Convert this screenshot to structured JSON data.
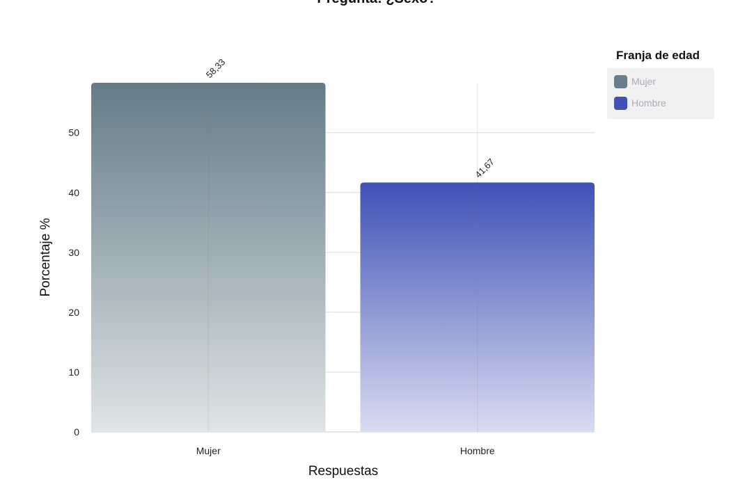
{
  "chart_data": {
    "type": "bar",
    "title": "Pregunta: ¿Sexo?",
    "xlabel": "Respuestas",
    "ylabel": "Porcentaje %",
    "categories": [
      "Mujer",
      "Hombre"
    ],
    "values": [
      58.33,
      41.67
    ],
    "value_labels": [
      "58,33",
      "41,67"
    ],
    "ylim": [
      0,
      58.33
    ],
    "yticks": [
      0,
      10,
      20,
      30,
      40,
      50
    ],
    "grid": true,
    "legend": {
      "title": "Franja de edad",
      "placement": "top-right",
      "items": [
        {
          "label": "Mujer",
          "color": "#687e8a"
        },
        {
          "label": "Hombre",
          "color": "#3f51b5"
        }
      ]
    },
    "colors": {
      "Mujer": {
        "top": "#657b87",
        "bottom": "#dfe4e6"
      },
      "Hombre": {
        "top": "#3f51b5",
        "bottom": "#dadcf1"
      }
    }
  }
}
